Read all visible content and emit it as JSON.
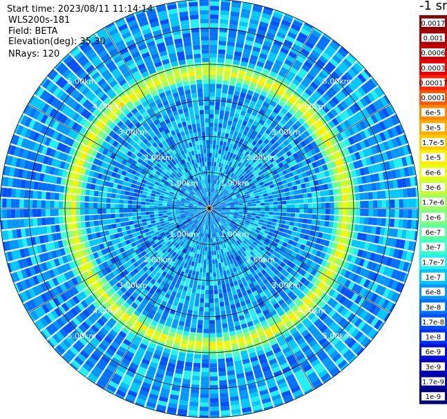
{
  "header": {
    "start_time": "Start time: 2023/08/11 11:14:14",
    "instrument": "WLS200s-181",
    "field": "Field: BETA",
    "elevation": "Elevation(deg): 35.30",
    "nrays": "NRays: 120"
  },
  "colorbar": {
    "unit": "-1 sr",
    "levels": [
      "0.0017",
      "0.001",
      "0.0006",
      "0.0003",
      "0.00017",
      "0.0001",
      "6e-5",
      "3e-5",
      "1.7e-5",
      "1e-5",
      "6e-6",
      "3e-6",
      "1.7e-6",
      "1e-6",
      "6e-7",
      "3e-7",
      "1.7e-7",
      "1e-7",
      "6e-8",
      "3e-8",
      "1.7e-8",
      "1e-8",
      "6e-9",
      "3e-9",
      "1.7e-9",
      "1e-9"
    ],
    "colors": [
      "#8b0000",
      "#a80000",
      "#c80000",
      "#e80000",
      "#ff2000",
      "#ff5500",
      "#ff8800",
      "#ffaa00",
      "#ffcc00",
      "#ffee00",
      "#e8ff10",
      "#c8ff30",
      "#a0ff60",
      "#80ff80",
      "#60ffa0",
      "#40ffc8",
      "#20f0f0",
      "#00c8ff",
      "#0098ff",
      "#0070ff",
      "#0050ff",
      "#0030f0",
      "#0010e0",
      "#0000c8",
      "#0000a0",
      "#000078"
    ]
  },
  "chart_data": {
    "type": "heatmap",
    "projection": "polar PPI scan",
    "field": "BETA",
    "rays": 120,
    "range_rings_km": [
      1,
      2,
      3,
      4,
      5
    ],
    "range_labels": {
      "r1": "1.00km",
      "r2": "2.00km",
      "r3": "3.00km",
      "r4": "4.00km",
      "r5": "5.00km"
    },
    "max_range_km": 5.8,
    "description_of_field": {
      "background_level_index": 18,
      "enhanced_band_range_km": [
        3.55,
        4.05
      ],
      "enhanced_band_level_index": 9
    }
  }
}
